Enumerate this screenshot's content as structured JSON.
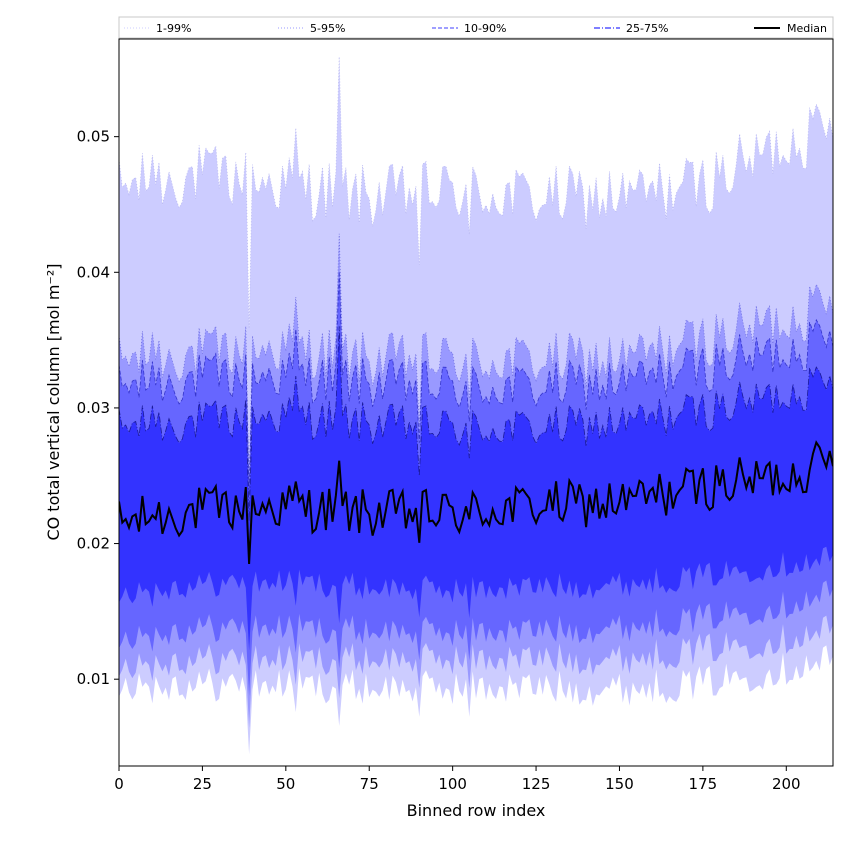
{
  "chart_data": {
    "type": "area",
    "xlabel": "Binned row index",
    "ylabel": "CO total vertical column [mol m⁻²]",
    "xlim": [
      0,
      214
    ],
    "ylim": [
      0.0036,
      0.0572
    ],
    "x_ticks": [
      0,
      25,
      50,
      75,
      100,
      125,
      150,
      175,
      200
    ],
    "y_ticks": [
      0.01,
      0.02,
      0.03,
      0.04,
      0.05
    ],
    "legend_position": "top, above plot",
    "x_step": 1,
    "bands": [
      {
        "name": "1-99%",
        "color": "#ccccff",
        "line_color": "#b8b8f0",
        "line_style": "dotted",
        "upper_base": [
          [
            0,
            0.0462
          ],
          [
            25,
            0.0472
          ],
          [
            50,
            0.0465
          ],
          [
            75,
            0.0455
          ],
          [
            100,
            0.046
          ],
          [
            125,
            0.0455
          ],
          [
            150,
            0.0455
          ],
          [
            175,
            0.0465
          ],
          [
            200,
            0.0495
          ],
          [
            214,
            0.0505
          ]
        ],
        "lower_base": [
          [
            0,
            0.0098
          ],
          [
            25,
            0.0096
          ],
          [
            50,
            0.0096
          ],
          [
            75,
            0.0094
          ],
          [
            100,
            0.0094
          ],
          [
            125,
            0.0094
          ],
          [
            150,
            0.0093
          ],
          [
            175,
            0.0097
          ],
          [
            200,
            0.0108
          ],
          [
            214,
            0.0115
          ]
        ]
      },
      {
        "name": "5-95%",
        "color": "#9999ff",
        "line_color": "#6f6fe0",
        "line_style": "dotted",
        "upper_base": [
          [
            0,
            0.0335
          ],
          [
            25,
            0.034
          ],
          [
            50,
            0.0345
          ],
          [
            75,
            0.0335
          ],
          [
            100,
            0.0335
          ],
          [
            125,
            0.0335
          ],
          [
            150,
            0.0335
          ],
          [
            175,
            0.035
          ],
          [
            200,
            0.0365
          ],
          [
            214,
            0.0375
          ]
        ],
        "lower_base": [
          [
            0,
            0.0112
          ],
          [
            25,
            0.0115
          ],
          [
            50,
            0.0115
          ],
          [
            75,
            0.0115
          ],
          [
            100,
            0.0115
          ],
          [
            125,
            0.0115
          ],
          [
            150,
            0.0115
          ],
          [
            175,
            0.0122
          ],
          [
            200,
            0.013
          ],
          [
            214,
            0.0138
          ]
        ]
      },
      {
        "name": "10-90%",
        "color": "#6666ff",
        "line_color": "#3535cc",
        "line_style": "dashed",
        "upper_base": [
          [
            0,
            0.0315
          ],
          [
            25,
            0.0322
          ],
          [
            50,
            0.0325
          ],
          [
            75,
            0.0318
          ],
          [
            100,
            0.0315
          ],
          [
            125,
            0.0315
          ],
          [
            150,
            0.0318
          ],
          [
            175,
            0.033
          ],
          [
            200,
            0.0342
          ],
          [
            214,
            0.035
          ]
        ],
        "lower_base": [
          [
            0,
            0.0132
          ],
          [
            25,
            0.0138
          ],
          [
            50,
            0.0138
          ],
          [
            75,
            0.0136
          ],
          [
            100,
            0.0135
          ],
          [
            125,
            0.0136
          ],
          [
            150,
            0.0138
          ],
          [
            175,
            0.0145
          ],
          [
            200,
            0.0155
          ],
          [
            214,
            0.0165
          ]
        ]
      },
      {
        "name": "25-75%",
        "color": "#3333ff",
        "line_color": "#1a1a99",
        "line_style": "dashdot",
        "upper_base": [
          [
            0,
            0.0285
          ],
          [
            25,
            0.029
          ],
          [
            50,
            0.0295
          ],
          [
            75,
            0.0288
          ],
          [
            100,
            0.0285
          ],
          [
            125,
            0.0285
          ],
          [
            150,
            0.0288
          ],
          [
            175,
            0.0298
          ],
          [
            200,
            0.031
          ],
          [
            214,
            0.0318
          ]
        ],
        "lower_base": [
          [
            0,
            0.0165
          ],
          [
            25,
            0.017
          ],
          [
            50,
            0.0172
          ],
          [
            75,
            0.0168
          ],
          [
            100,
            0.0166
          ],
          [
            125,
            0.0168
          ],
          [
            150,
            0.017
          ],
          [
            175,
            0.0176
          ],
          [
            200,
            0.0185
          ],
          [
            214,
            0.019
          ]
        ]
      }
    ],
    "median": {
      "name": "Median",
      "color": "#000000",
      "base": [
        [
          0,
          0.0215
        ],
        [
          25,
          0.0225
        ],
        [
          50,
          0.0228
        ],
        [
          75,
          0.0222
        ],
        [
          100,
          0.0222
        ],
        [
          125,
          0.0228
        ],
        [
          150,
          0.023
        ],
        [
          175,
          0.0242
        ],
        [
          200,
          0.025
        ],
        [
          214,
          0.0262
        ]
      ]
    },
    "spikes": [
      [
        39,
        -0.009
      ],
      [
        66,
        0.0085
      ],
      [
        90,
        -0.004
      ],
      [
        105,
        -0.004
      ],
      [
        10,
        0.003
      ],
      [
        53,
        0.003
      ],
      [
        207,
        0.004
      ]
    ]
  }
}
